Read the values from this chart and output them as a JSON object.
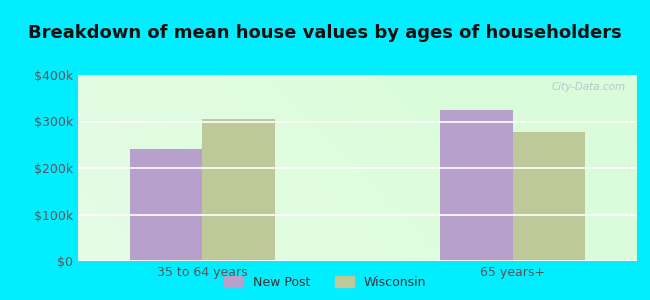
{
  "title": "Breakdown of mean house values by ages of householders",
  "categories": [
    "35 to 64 years",
    "65 years+"
  ],
  "series": {
    "New Post": [
      240000,
      325000
    ],
    "Wisconsin": [
      305000,
      278000
    ]
  },
  "bar_colors": {
    "New Post": "#b8a0cc",
    "Wisconsin": "#bec99a"
  },
  "ylim": [
    0,
    400000
  ],
  "yticks": [
    0,
    100000,
    200000,
    300000,
    400000
  ],
  "ytick_labels": [
    "$0",
    "$100k",
    "$200k",
    "$300k",
    "$400k"
  ],
  "background_color": "#00eeff",
  "title_fontsize": 13,
  "legend_labels": [
    "New Post",
    "Wisconsin"
  ],
  "bar_width": 0.35,
  "group_positions": [
    1.0,
    2.5
  ]
}
